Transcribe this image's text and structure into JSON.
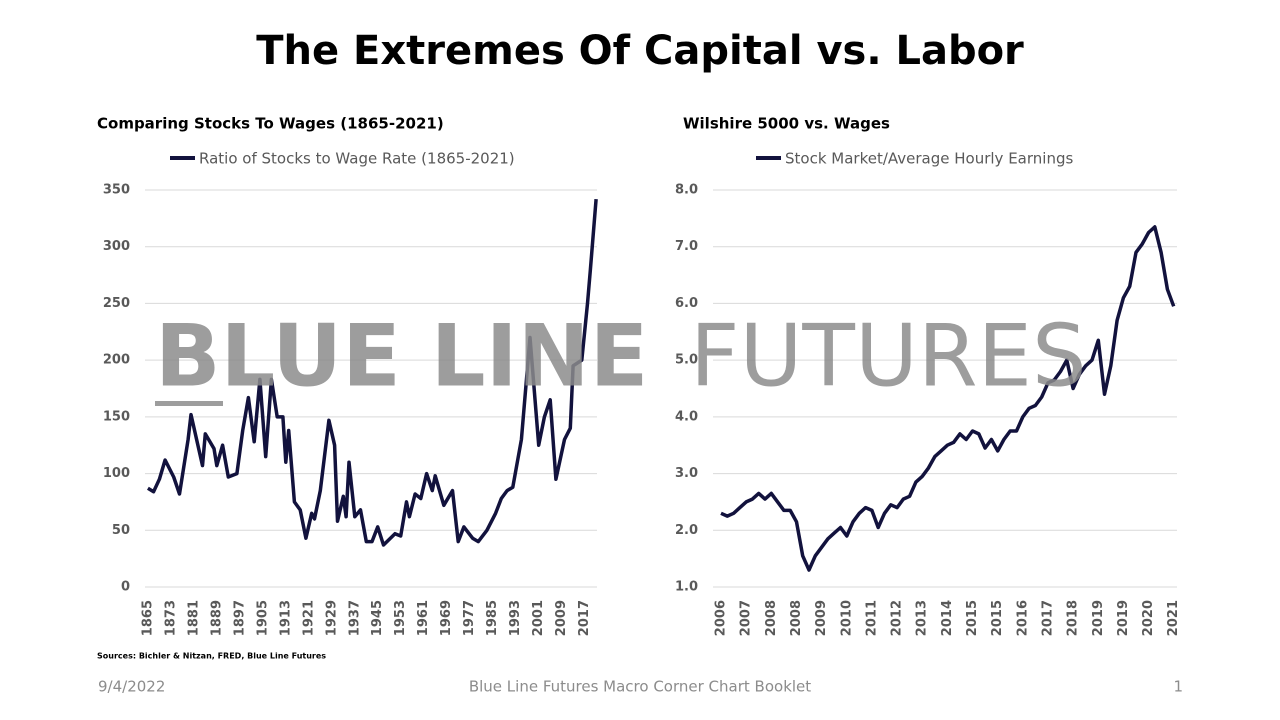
{
  "title": "The Extremes Of Capital vs. Labor",
  "watermark": {
    "bold": "BLUE LINE",
    "light": "FUTURES"
  },
  "sources": "Sources: Bichler & Nitzan, FRED, Blue Line Futures",
  "footer": {
    "date": "9/4/2022",
    "center": "Blue Line Futures Macro Corner Chart Booklet",
    "page": "1"
  },
  "chart_data": [
    {
      "type": "line",
      "title": "Comparing Stocks To Wages (1865-2021)",
      "x": [
        1865,
        1867,
        1869,
        1871,
        1874,
        1876,
        1879,
        1880,
        1884,
        1885,
        1888,
        1889,
        1891,
        1893,
        1896,
        1898,
        1900,
        1902,
        1904,
        1906,
        1908,
        1910,
        1912,
        1913,
        1914,
        1916,
        1918,
        1920,
        1922,
        1923,
        1925,
        1928,
        1930,
        1931,
        1933,
        1934,
        1935,
        1937,
        1939,
        1941,
        1943,
        1945,
        1947,
        1951,
        1953,
        1955,
        1956,
        1958,
        1960,
        1962,
        1964,
        1965,
        1968,
        1971,
        1973,
        1975,
        1978,
        1980,
        1983,
        1986,
        1988,
        1990,
        1992,
        1995,
        1998,
        2001,
        2003,
        2005,
        2007,
        2010,
        2012,
        2013,
        2016,
        2018,
        2019,
        2021
      ],
      "series": [
        {
          "name": "Ratio of Stocks to Wage Rate (1865-2021)",
          "color": "#12123d",
          "values": [
            87,
            84,
            95,
            112,
            97,
            82,
            130,
            152,
            107,
            135,
            122,
            107,
            125,
            97,
            100,
            138,
            167,
            128,
            183,
            115,
            183,
            150,
            150,
            110,
            138,
            75,
            68,
            43,
            65,
            60,
            85,
            147,
            125,
            58,
            80,
            62,
            110,
            62,
            68,
            40,
            40,
            53,
            37,
            47,
            45,
            75,
            62,
            82,
            78,
            100,
            85,
            98,
            72,
            85,
            40,
            53,
            43,
            40,
            50,
            65,
            78,
            85,
            88,
            130,
            220,
            125,
            150,
            165,
            95,
            130,
            140,
            195,
            200,
            250,
            280,
            342
          ]
        }
      ],
      "xlim": [
        1864,
        2022
      ],
      "xticks": [
        1865,
        1873,
        1881,
        1889,
        1897,
        1905,
        1913,
        1921,
        1929,
        1937,
        1945,
        1953,
        1961,
        1969,
        1977,
        1985,
        1993,
        2001,
        2009,
        2017
      ],
      "ylim": [
        0,
        350
      ],
      "yticks": [
        0,
        50,
        100,
        150,
        200,
        250,
        300,
        350
      ],
      "grid": true
    },
    {
      "type": "line",
      "title": "Wilshire 5000 vs. Wages",
      "categories": [
        "2006",
        null,
        null,
        null,
        "2007",
        null,
        null,
        null,
        "2008",
        null,
        null,
        null,
        "2008",
        null,
        null,
        null,
        "2009",
        null,
        null,
        null,
        "2010",
        null,
        null,
        null,
        "2011",
        null,
        null,
        null,
        "2012",
        null,
        null,
        null,
        "2013",
        null,
        null,
        null,
        "2014",
        null,
        null,
        null,
        "2015",
        null,
        null,
        null,
        "2015",
        null,
        null,
        null,
        "2016",
        null,
        null,
        null,
        "2017",
        null,
        null,
        null,
        "2018",
        null,
        null,
        null,
        "2019",
        null,
        null,
        null,
        "2019",
        null,
        null,
        null,
        "2020",
        null,
        null,
        null,
        "2021"
      ],
      "series": [
        {
          "name": "Stock Market/Average Hourly Earnings",
          "color": "#12123d",
          "values": [
            2.3,
            2.25,
            2.3,
            2.4,
            2.5,
            2.55,
            2.65,
            2.55,
            2.65,
            2.5,
            2.35,
            2.35,
            2.15,
            1.55,
            1.3,
            1.55,
            1.7,
            1.85,
            1.95,
            2.05,
            1.9,
            2.15,
            2.3,
            2.4,
            2.35,
            2.05,
            2.3,
            2.45,
            2.4,
            2.55,
            2.6,
            2.85,
            2.95,
            3.1,
            3.3,
            3.4,
            3.5,
            3.55,
            3.7,
            3.6,
            3.75,
            3.7,
            3.45,
            3.6,
            3.4,
            3.6,
            3.75,
            3.75,
            4.0,
            4.15,
            4.2,
            4.35,
            4.6,
            4.65,
            4.8,
            5.0,
            4.5,
            4.75,
            4.9,
            5.0,
            5.35,
            4.4,
            4.9,
            5.7,
            6.1,
            6.3,
            6.9,
            7.05,
            7.25,
            7.35,
            6.9,
            6.25,
            5.95
          ]
        }
      ],
      "ylim": [
        1,
        8
      ],
      "yticks": [
        {
          "value": 1,
          "label": "1.0"
        },
        {
          "value": 2,
          "label": "2.0"
        },
        {
          "value": 3,
          "label": "3.0"
        },
        {
          "value": 4,
          "label": "4.0"
        },
        {
          "value": 5,
          "label": "5.0"
        },
        {
          "value": 6,
          "label": "6.0"
        },
        {
          "value": 7,
          "label": "7.0"
        },
        {
          "value": 8,
          "label": "8.0"
        }
      ],
      "grid": true
    }
  ]
}
